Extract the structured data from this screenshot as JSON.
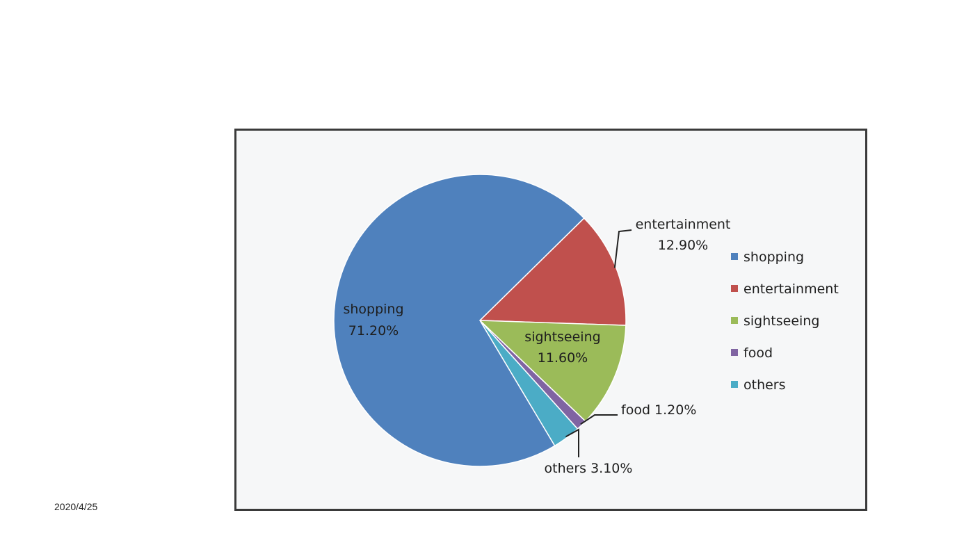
{
  "footer": {
    "date": "2020/4/25"
  },
  "chart_data": {
    "type": "pie",
    "categories": [
      "shopping",
      "entertainment",
      "sightseeing",
      "food",
      "others"
    ],
    "values": [
      71.2,
      12.9,
      11.6,
      1.2,
      3.1
    ],
    "value_labels": [
      "71.20%",
      "12.90%",
      "11.60%",
      "1.20%",
      "3.10%"
    ],
    "colors": [
      "#4f81bd",
      "#c0504d",
      "#9bbb59",
      "#8064a2",
      "#4bacc6"
    ],
    "legend": {
      "placement": "right",
      "entries": [
        "shopping",
        "entertainment",
        "sightseeing",
        "food",
        "others"
      ]
    },
    "data_labels": [
      {
        "category": "shopping",
        "lines": [
          "shopping",
          "71.20%"
        ],
        "placement": "inside"
      },
      {
        "category": "entertainment",
        "lines": [
          "entertainment",
          "12.90%"
        ],
        "placement": "outside-leader"
      },
      {
        "category": "sightseeing",
        "lines": [
          "sightseeing",
          "11.60%"
        ],
        "placement": "inside"
      },
      {
        "category": "food",
        "lines": [
          "food 1.20%"
        ],
        "placement": "outside-leader"
      },
      {
        "category": "others",
        "lines": [
          "others 3.10%"
        ],
        "placement": "outside-leader"
      }
    ]
  }
}
